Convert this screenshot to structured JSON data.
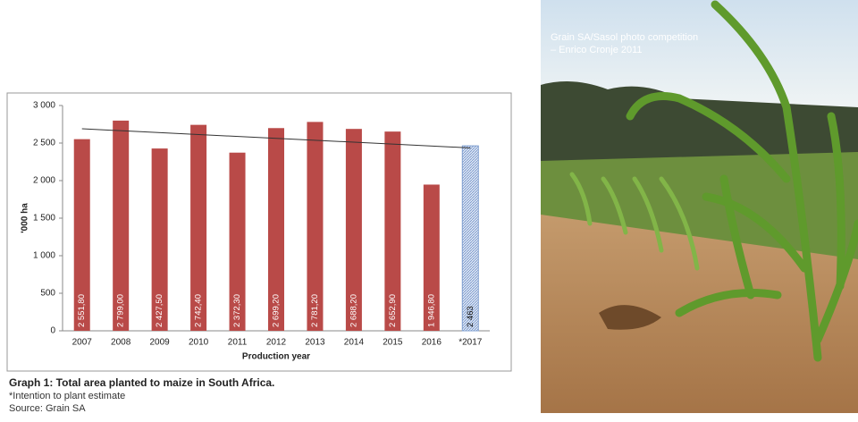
{
  "chart_data": {
    "type": "bar",
    "categories": [
      "2007",
      "2008",
      "2009",
      "2010",
      "2011",
      "2012",
      "2013",
      "2014",
      "2015",
      "2016",
      "*2017"
    ],
    "values": [
      2551.8,
      2799.0,
      2427.5,
      2742.4,
      2372.3,
      2699.2,
      2781.2,
      2688.2,
      2652.9,
      1946.8,
      2463
    ],
    "value_labels": [
      "2 551,80",
      "2 799,00",
      "2 427,50",
      "2 742,40",
      "2 372,30",
      "2 699,20",
      "2 781,20",
      "2 688,20",
      "2 652,90",
      "1 946,80",
      "2 463"
    ],
    "color": "#b94a48",
    "estimate_color": "#7f9fd0",
    "ylim": [
      0,
      3000
    ],
    "yticks": [
      0,
      500,
      {
        "value": 1000,
        "label": "1 000"
      },
      {
        "value": 1500,
        "label": "1 500"
      },
      {
        "value": 2000,
        "label": "2 000"
      },
      {
        "value": 2500,
        "label": "2 500"
      },
      {
        "value": 3000,
        "label": "3 000"
      }
    ],
    "ylabel": "'000 ha",
    "xlabel": "Production year",
    "grid": false,
    "trend": {
      "start": 2690,
      "end": 2435
    }
  },
  "caption": {
    "title": "Graph 1: Total area planted to maize in South Africa.",
    "note": "*Intention to plant estimate",
    "source": "Source: Grain SA"
  },
  "photo_credit": [
    "Grain SA/Sasol photo competition",
    "– Enrico Cronje 2011"
  ]
}
